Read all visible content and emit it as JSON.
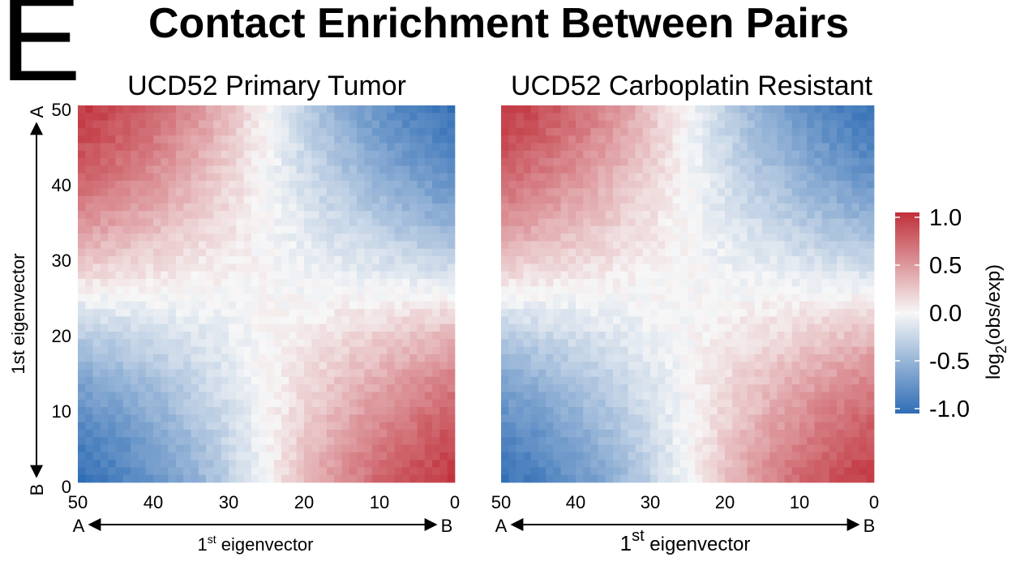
{
  "panel_letter": "E",
  "main_title": "Contact Enrichment Between Pairs",
  "colors": {
    "low": "#2F6DB5",
    "mid": "#F7F7F7",
    "high": "#C0303A"
  },
  "chart_data": [
    {
      "type": "heatmap",
      "title": "UCD52 Primary Tumor",
      "n": 50,
      "x_ticks": [
        50,
        40,
        30,
        20,
        10,
        0
      ],
      "y_ticks": [
        50,
        40,
        30,
        20,
        10,
        0
      ],
      "xlim": [
        50,
        0
      ],
      "ylim": [
        0,
        50
      ],
      "x_end_labels": {
        "left": "A",
        "right": "B"
      },
      "y_end_labels": {
        "top": "A",
        "bottom": "B"
      },
      "xlabel": {
        "main": "1",
        "sup": "st",
        "rest": " eigenvector"
      },
      "ylabel": "1st eigenvector",
      "value_model": {
        "amplitude": 0.92,
        "corner_boost": 0.12,
        "noise": 0.12
      }
    },
    {
      "type": "heatmap",
      "title": "UCD52 Carboplatin Resistant",
      "n": 50,
      "x_ticks": [
        50,
        40,
        30,
        20,
        10,
        0
      ],
      "xlim": [
        50,
        0
      ],
      "ylim": [
        0,
        50
      ],
      "x_end_labels": {
        "left": "A",
        "right": "B"
      },
      "xlabel": {
        "main": "1",
        "sup": "st",
        "rest": " eigenvector"
      },
      "value_model": {
        "amplitude": 0.88,
        "corner_boost": 0.15,
        "noise": 0.12
      }
    }
  ],
  "colorbar": {
    "title_base": "log",
    "title_sub": "2",
    "title_rest": "(obs/exp)",
    "ticks": [
      "1.0",
      "0.5",
      "0.0",
      "-0.5",
      "-1.0"
    ],
    "range": [
      -1.0,
      1.0
    ]
  }
}
